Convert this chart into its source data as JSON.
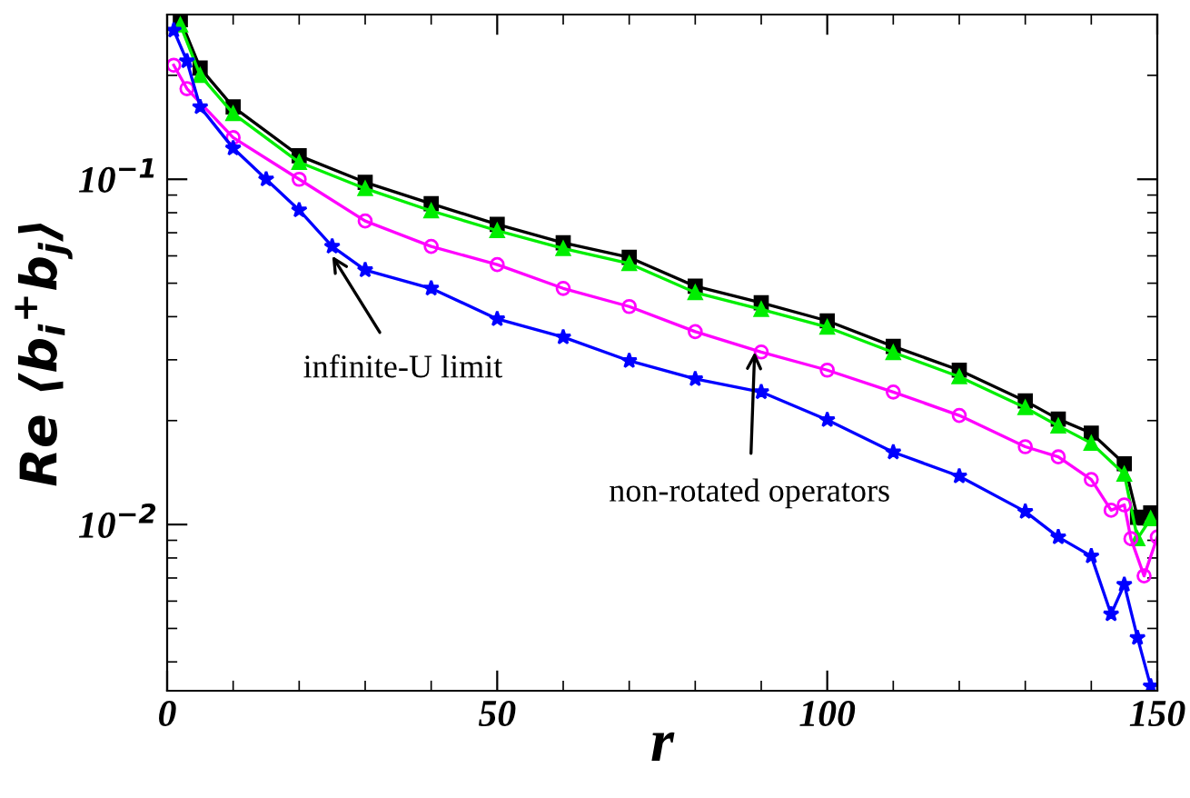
{
  "chart_data": {
    "type": "line",
    "xlabel": "r",
    "ylabel": "Re ⟨b$_{i}$$^{+}$b$_{j}$⟩",
    "log": "y",
    "xlim": [
      0,
      150
    ],
    "ylim": [
      0.0033,
      0.3
    ],
    "xticks": [
      0,
      50,
      100,
      150
    ],
    "yticks": [
      {
        "value": 0.01,
        "label": "10$^{−2}$"
      },
      {
        "value": 0.1,
        "label": "10$^{−1}$"
      }
    ],
    "grid": false,
    "legend": false,
    "series": [
      {
        "color": "#000000",
        "marker": "square",
        "x": [
          2,
          5,
          10,
          20,
          30,
          40,
          50,
          60,
          70,
          80,
          90,
          100,
          110,
          120,
          130,
          135,
          140,
          145,
          147,
          149
        ],
        "values": [
          0.29,
          0.21,
          0.162,
          0.117,
          0.098,
          0.085,
          0.074,
          0.0655,
          0.0594,
          0.049,
          0.0439,
          0.0389,
          0.0328,
          0.028,
          0.0228,
          0.0202,
          0.0184,
          0.015,
          0.0105,
          0.0108
        ]
      },
      {
        "color": "#00ee00",
        "marker": "triangle",
        "x": [
          2,
          5,
          10,
          20,
          30,
          40,
          50,
          60,
          70,
          80,
          90,
          100,
          110,
          120,
          130,
          135,
          140,
          145,
          147,
          149
        ],
        "values": [
          0.28,
          0.2,
          0.155,
          0.112,
          0.094,
          0.081,
          0.071,
          0.063,
          0.057,
          0.047,
          0.042,
          0.0373,
          0.0315,
          0.0268,
          0.0218,
          0.0193,
          0.0172,
          0.014,
          0.0091,
          0.0104
        ]
      },
      {
        "color": "#ff00ff",
        "marker": "circle",
        "x": [
          1,
          3,
          10,
          20,
          30,
          40,
          50,
          60,
          70,
          80,
          90,
          100,
          110,
          120,
          130,
          135,
          140,
          143,
          145,
          146,
          148,
          150
        ],
        "values": [
          0.214,
          0.183,
          0.132,
          0.1,
          0.0757,
          0.0639,
          0.0566,
          0.0483,
          0.0428,
          0.0362,
          0.0316,
          0.028,
          0.0242,
          0.0207,
          0.0168,
          0.0157,
          0.0135,
          0.011,
          0.0114,
          0.0091,
          0.0071,
          0.0092
        ]
      },
      {
        "color": "#0000ff",
        "marker": "star",
        "x": [
          1,
          3,
          5,
          10,
          15,
          20,
          25,
          30,
          40,
          50,
          60,
          70,
          80,
          90,
          100,
          110,
          120,
          130,
          135,
          140,
          143,
          145,
          147,
          149
        ],
        "values": [
          0.27,
          0.22,
          0.162,
          0.123,
          0.1,
          0.0814,
          0.0639,
          0.0546,
          0.0483,
          0.0394,
          0.0349,
          0.0298,
          0.0264,
          0.0242,
          0.0201,
          0.0162,
          0.0138,
          0.0109,
          0.0092,
          0.0081,
          0.0055,
          0.0067,
          0.0047,
          0.0034
        ]
      }
    ],
    "annotations": [
      {
        "text": "infinite-U limit",
        "x": 25,
        "y": 0.06
      },
      {
        "text": "non-rotated operators",
        "x": 89,
        "y": 0.0316
      }
    ]
  }
}
